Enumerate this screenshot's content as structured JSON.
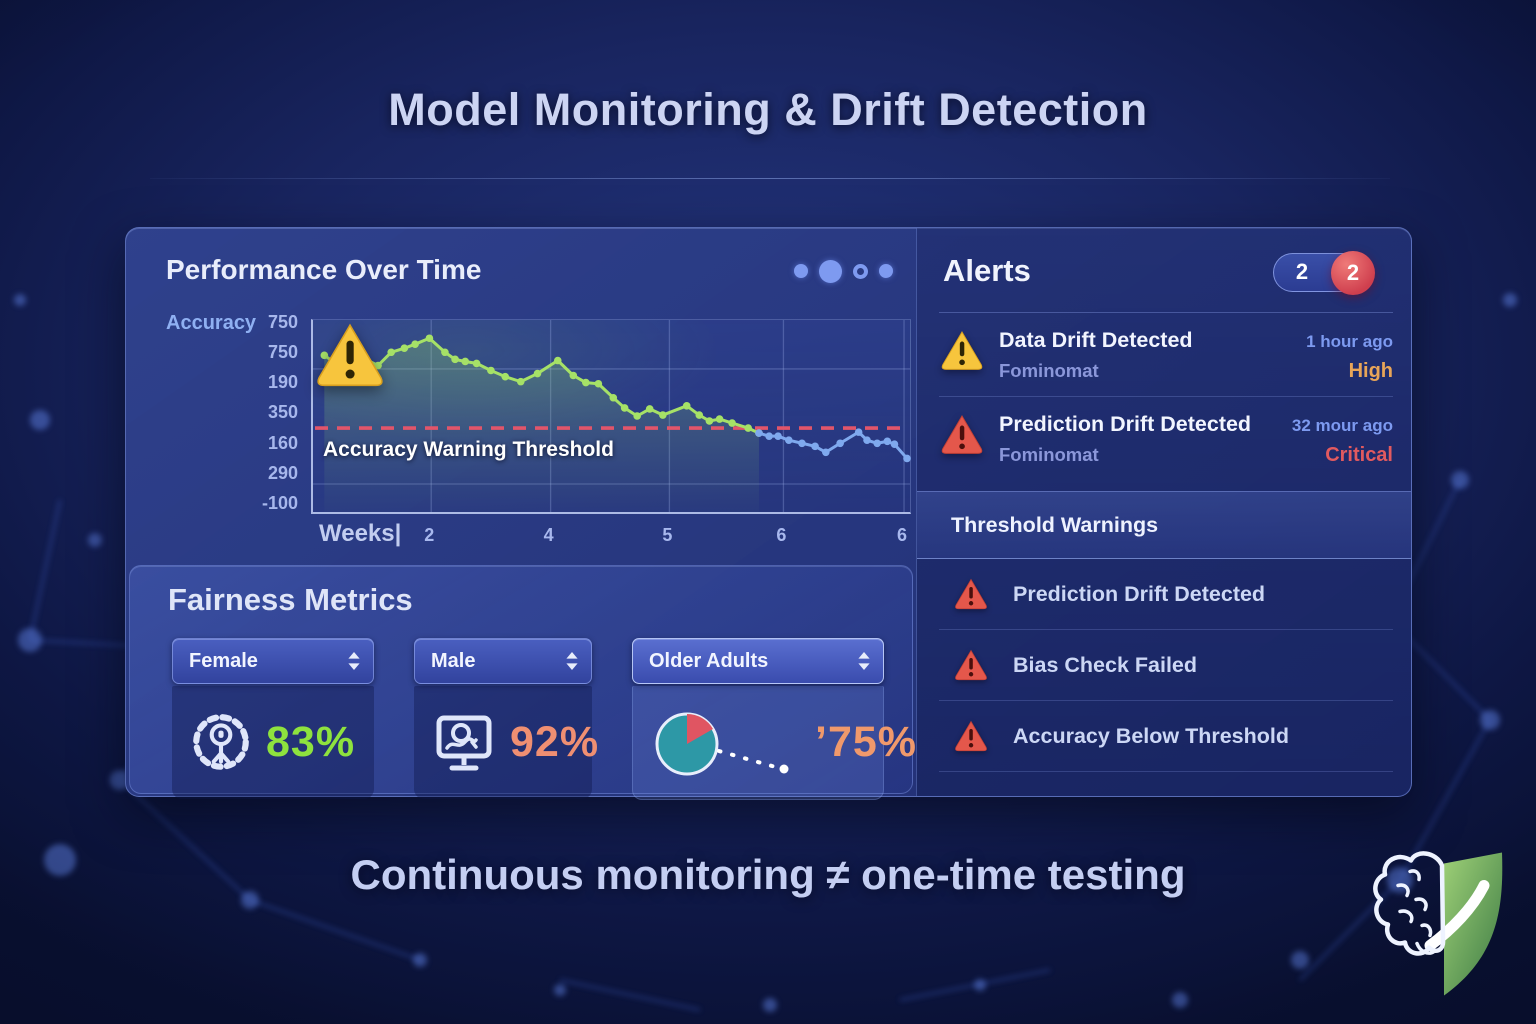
{
  "page": {
    "title": "Model Monitoring & Drift Detection",
    "tagline": "Continuous monitoring ≠ one-time testing"
  },
  "performance": {
    "title": "Performance Over Time",
    "dots": [
      {
        "style": "filled-small"
      },
      {
        "style": "filled-large"
      },
      {
        "style": "ring-small"
      },
      {
        "style": "filled-small"
      }
    ]
  },
  "chart_data": {
    "type": "line",
    "title": "Performance Over Time",
    "xlabel": "Weeks",
    "xlabel_display": "Weeks|",
    "ylabel": "Accuracy",
    "x_tick_labels": [
      "2",
      "4",
      "5",
      "6",
      "6"
    ],
    "x_tick_positions_pct": [
      19.8,
      39.8,
      59.7,
      78.8,
      99.0
    ],
    "y_tick_labels": [
      "750",
      "750",
      "190",
      "350",
      "160",
      "290",
      "-100"
    ],
    "h_gridlines_pct_from_top": [
      25.5,
      85.4
    ],
    "grid": true,
    "legend": "none",
    "threshold": {
      "label": "Accuracy Warning Threshold",
      "y_pct_from_bottom": 43.7,
      "color": "#e2556a"
    },
    "annotation": {
      "type": "warning-triangle",
      "near_x_tick": "5"
    },
    "series": [
      {
        "name": "accuracy-above-threshold",
        "color": "#a6e167",
        "points": [
          [
            1.9,
            81.6
          ],
          [
            4.5,
            75.8
          ],
          [
            6.7,
            82.1
          ],
          [
            8.8,
            79.5
          ],
          [
            10.9,
            76.3
          ],
          [
            13.1,
            83.2
          ],
          [
            15.3,
            85.3
          ],
          [
            17.1,
            87.4
          ],
          [
            19.5,
            90.5
          ],
          [
            22.1,
            83.2
          ],
          [
            23.8,
            79.5
          ],
          [
            25.5,
            78.4
          ],
          [
            27.4,
            77.4
          ],
          [
            29.8,
            73.7
          ],
          [
            32.2,
            70.5
          ],
          [
            34.8,
            67.9
          ],
          [
            37.6,
            72.1
          ],
          [
            41.0,
            78.9
          ],
          [
            43.6,
            71.1
          ],
          [
            45.7,
            67.4
          ],
          [
            47.8,
            66.8
          ],
          [
            50.3,
            59.5
          ],
          [
            52.2,
            54.2
          ],
          [
            54.3,
            50.0
          ],
          [
            56.4,
            53.7
          ],
          [
            58.6,
            50.5
          ],
          [
            62.6,
            55.3
          ],
          [
            64.7,
            50.5
          ],
          [
            66.4,
            47.4
          ],
          [
            68.1,
            48.4
          ],
          [
            70.2,
            46.3
          ],
          [
            72.9,
            43.7
          ],
          [
            74.7,
            41.1
          ]
        ]
      },
      {
        "name": "accuracy-below-threshold",
        "color": "#7fa9ee",
        "points": [
          [
            74.7,
            41.1
          ],
          [
            76.4,
            39.5
          ],
          [
            77.9,
            39.5
          ],
          [
            79.7,
            37.4
          ],
          [
            81.9,
            35.8
          ],
          [
            84.1,
            34.2
          ],
          [
            85.9,
            31.1
          ],
          [
            88.3,
            35.8
          ],
          [
            91.4,
            41.6
          ],
          [
            92.8,
            37.4
          ],
          [
            94.5,
            35.8
          ],
          [
            96.2,
            36.8
          ],
          [
            97.4,
            35.3
          ],
          [
            99.5,
            27.9
          ]
        ]
      }
    ]
  },
  "fairness": {
    "title": "Fairness Metrics",
    "cards": [
      {
        "label": "Female",
        "icon": "gear-person-icon",
        "value": "83%",
        "value_prefix": "",
        "value_color": "#8ee23e",
        "highlight": false
      },
      {
        "label": "Male",
        "icon": "monitor-search-icon",
        "value": "92%",
        "value_prefix": "",
        "value_color": "#ef8f72",
        "highlight": false
      },
      {
        "label": "Older Adults",
        "icon": "pie-chart-icon",
        "value": "75%",
        "value_prefix": "ʼ",
        "value_color": "#f0996b",
        "highlight": true
      }
    ]
  },
  "alerts": {
    "title": "Alerts",
    "badge_total": "2",
    "badge_unread": "2",
    "items": [
      {
        "icon": "warning-yellow-icon",
        "title": "Data Drift Detected",
        "subtitle": "Fominomat",
        "time": "1 hour ago",
        "severity": "High",
        "severity_color": "#e8a558"
      },
      {
        "icon": "warning-red-icon",
        "title": "Prediction Drift Detected",
        "subtitle": "Fominomat",
        "time": "32 mour ago",
        "severity": "Critical",
        "severity_color": "#e25a5f"
      }
    ],
    "threshold_warnings": {
      "title": "Threshold Warnings",
      "items": [
        {
          "icon": "warning-red-icon",
          "label": "Prediction Drift Detected"
        },
        {
          "icon": "warning-red-icon",
          "label": "Bias Check Failed"
        },
        {
          "icon": "warning-red-icon",
          "label": "Accuracy Below Threshold"
        }
      ]
    }
  },
  "colors": {
    "background": "#141f5c",
    "panel": "#2b3c8a",
    "accent_green": "#8ee23e",
    "accent_salmon": "#ef8f72",
    "accent_orange": "#f0996b",
    "line_green": "#a6e167",
    "line_blue": "#7fa9ee",
    "threshold_red": "#e2556a",
    "warning_yellow": "#f7c53d",
    "warning_red": "#e4574b",
    "severity_high": "#e8a558",
    "severity_critical": "#e25a5f",
    "timestamp_blue": "#7d9af0",
    "logo_shield_green": "#6faf58"
  }
}
